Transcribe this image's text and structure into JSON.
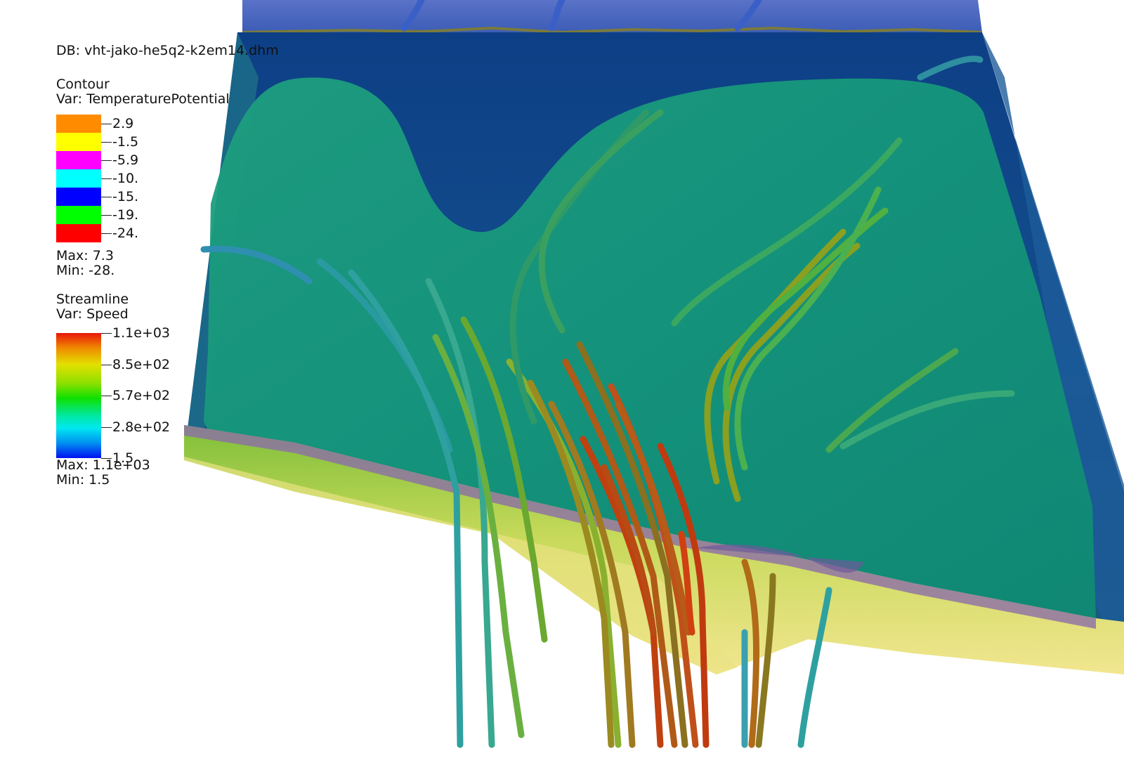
{
  "db_title": "DB: vht-jako-he5q2-k2em14.dhm",
  "contour": {
    "title": "Contour",
    "var": "Var: TemperaturePotential",
    "levels": [
      {
        "label": "2.9",
        "color": "#ff8c00"
      },
      {
        "label": "-1.5",
        "color": "#ffff00"
      },
      {
        "label": "-5.9",
        "color": "#ff00ff"
      },
      {
        "label": "-10.",
        "color": "#00ffff"
      },
      {
        "label": "-15.",
        "color": "#0000ff"
      },
      {
        "label": "-19.",
        "color": "#00ff00"
      },
      {
        "label": "-24.",
        "color": "#ff0000"
      }
    ],
    "max": "Max:  7.3",
    "min": "Min: -28."
  },
  "streamline": {
    "title": "Streamline",
    "var": "Var: Speed",
    "ticks": [
      "1.1e+03",
      "8.5e+02",
      "5.7e+02",
      "2.8e+02",
      "1.5"
    ],
    "max": "Max:  1.1e+03",
    "min": "Min:  1.5"
  }
}
